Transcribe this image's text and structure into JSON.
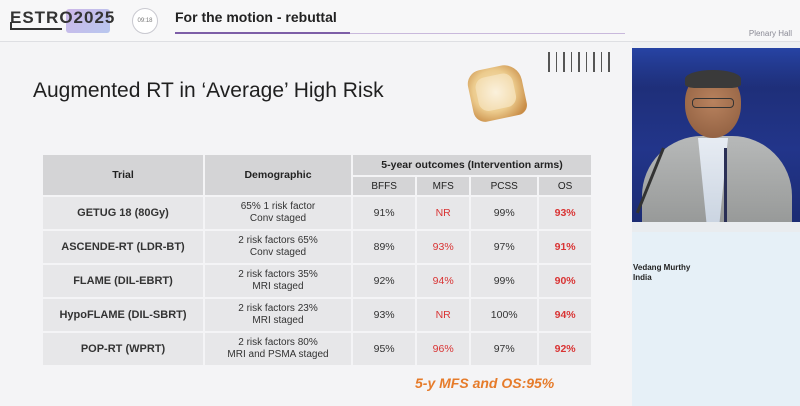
{
  "header": {
    "logo_text": "ESTRO2025",
    "timer": "09:18",
    "session_title": "For the motion - rebuttal",
    "location": "Plenary Hall"
  },
  "slide": {
    "title": "Augmented RT in ‘Average’ High Risk",
    "table": {
      "headers": {
        "trial": "Trial",
        "demographic": "Demographic",
        "outcomes": "5-year outcomes (Intervention arms)",
        "sub": [
          "BFFS",
          "MFS",
          "PCSS",
          "OS"
        ]
      },
      "rows": [
        {
          "trial": "GETUG 18 (80Gy)",
          "demo1": "65% 1 risk factor",
          "demo2": "Conv staged",
          "bffs": "91%",
          "mfs": "NR",
          "pcss": "99%",
          "os": "93%"
        },
        {
          "trial": "ASCENDE-RT (LDR-BT)",
          "demo1": "2 risk factors 65%",
          "demo2": "Conv staged",
          "bffs": "89%",
          "mfs": "93%",
          "pcss": "97%",
          "os": "91%"
        },
        {
          "trial": "FLAME (DIL-EBRT)",
          "demo1": "2 risk factors 35%",
          "demo2": "MRI staged",
          "bffs": "92%",
          "mfs": "94%",
          "pcss": "99%",
          "os": "90%"
        },
        {
          "trial": "HypoFLAME (DIL-SBRT)",
          "demo1": "2 risk factors 23%",
          "demo2": "MRI staged",
          "bffs": "93%",
          "mfs": "NR",
          "pcss": "100%",
          "os": "94%"
        },
        {
          "trial": "POP-RT (WPRT)",
          "demo1": "2 risk factors 80%",
          "demo2": "MRI and PSMA staged",
          "bffs": "95%",
          "mfs": "96%",
          "pcss": "97%",
          "os": "92%"
        }
      ]
    },
    "footnote": "5-y MFS and OS:95%"
  },
  "speaker": {
    "name": "Vedang Murthy",
    "country": "India"
  },
  "colors": {
    "accent_red": "#d93434",
    "footnote_orange": "#e67b2a",
    "brand_purple": "#7d5ea7"
  }
}
